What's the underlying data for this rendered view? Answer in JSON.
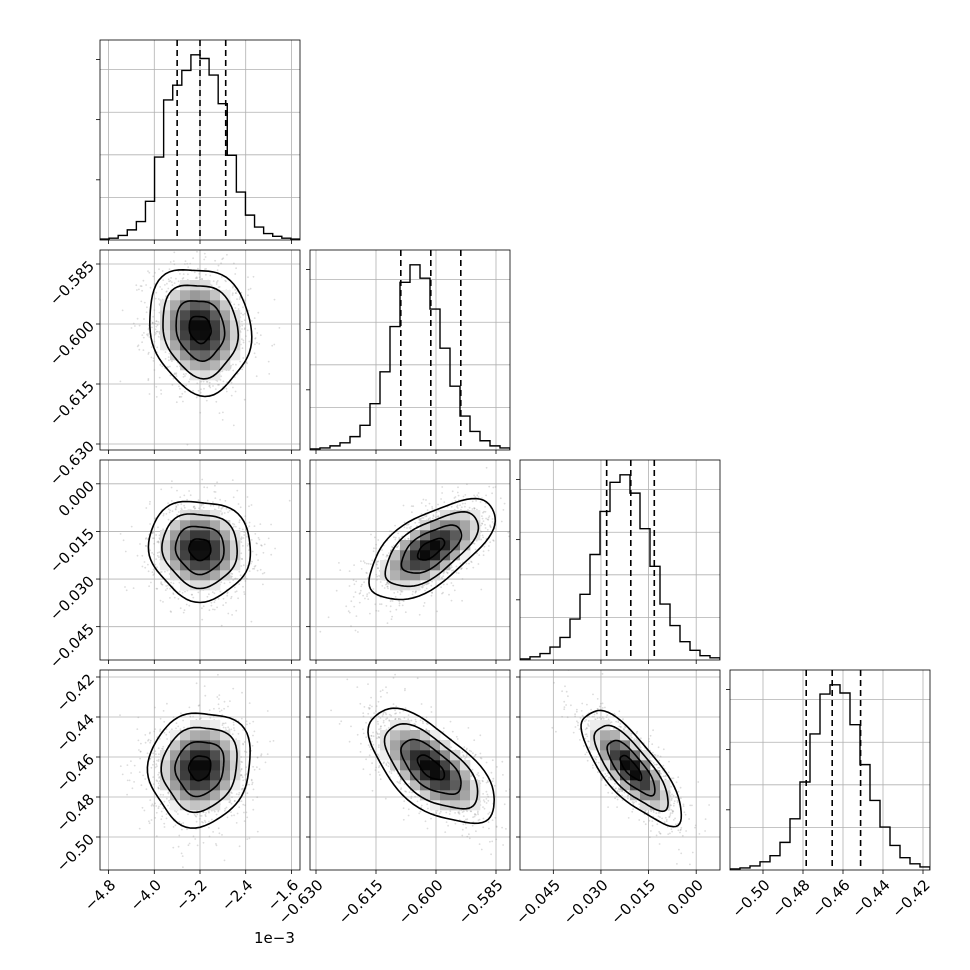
{
  "chart_data": {
    "type": "corner",
    "n_params": 4,
    "title": "",
    "params": [
      {
        "range": [
          -4.95,
          -1.45
        ],
        "ticks": [
          -4.8,
          -4.0,
          -3.2,
          -2.4,
          -1.6
        ],
        "tick_labels": [
          "−4.8",
          "−4.0",
          "−3.2",
          "−2.4",
          "−1.6"
        ],
        "offset_text": "1e−3",
        "quantiles": [
          -3.6,
          -3.2,
          -2.75
        ]
      },
      {
        "range": [
          -0.6315,
          -0.5815
        ],
        "ticks": [
          -0.63,
          -0.615,
          -0.6,
          -0.585
        ],
        "tick_labels": [
          "−0.630",
          "−0.615",
          "−0.600",
          "−0.585"
        ],
        "quantiles": [
          -0.6088,
          -0.6013,
          -0.5938
        ]
      },
      {
        "range": [
          -0.0555,
          0.0075
        ],
        "ticks": [
          -0.045,
          -0.03,
          -0.015,
          0.0
        ],
        "tick_labels": [
          "−0.045",
          "−0.030",
          "−0.015",
          "0.000"
        ],
        "quantiles": [
          -0.0282,
          -0.0206,
          -0.0132
        ]
      },
      {
        "range": [
          -0.5165,
          -0.4165
        ],
        "ticks": [
          -0.5,
          -0.48,
          -0.46,
          -0.44,
          -0.42
        ],
        "tick_labels": [
          "−0.50",
          "−0.48",
          "−0.46",
          "−0.44",
          "−0.42"
        ],
        "quantiles": [
          -0.4784,
          -0.4654,
          -0.4512
        ]
      }
    ],
    "histograms": [
      {
        "param": 0,
        "bin_range": [
          -4.95,
          -1.45
        ],
        "counts": [
          1,
          2,
          5,
          11,
          20,
          42,
          90,
          152,
          168,
          184,
          201,
          197,
          179,
          148,
          92,
          52,
          27,
          14,
          7,
          4,
          2,
          1
        ]
      },
      {
        "param": 1,
        "bin_range": [
          -0.6315,
          -0.5815
        ],
        "counts": [
          1,
          2,
          4,
          7,
          13,
          24,
          45,
          76,
          120,
          163,
          180,
          167,
          137,
          99,
          62,
          33,
          18,
          9,
          4,
          2
        ]
      },
      {
        "param": 2,
        "bin_range": [
          -0.0555,
          0.0075
        ],
        "counts": [
          1,
          3,
          6,
          12,
          21,
          38,
          61,
          98,
          138,
          165,
          172,
          155,
          122,
          87,
          52,
          32,
          17,
          9,
          4,
          2
        ]
      },
      {
        "param": 3,
        "bin_range": [
          -0.5165,
          -0.4165
        ],
        "counts": [
          1,
          2,
          4,
          8,
          14,
          27,
          50,
          86,
          133,
          172,
          181,
          173,
          142,
          103,
          68,
          42,
          24,
          12,
          6,
          3
        ]
      }
    ],
    "correlations": [
      {
        "row": 1,
        "col": 0,
        "rho": -0.12
      },
      {
        "row": 2,
        "col": 0,
        "rho": -0.05
      },
      {
        "row": 2,
        "col": 1,
        "rho": 0.62
      },
      {
        "row": 3,
        "col": 0,
        "rho": 0.08
      },
      {
        "row": 3,
        "col": 1,
        "rho": -0.62
      },
      {
        "row": 3,
        "col": 2,
        "rho": -0.76
      }
    ],
    "grid": true
  }
}
